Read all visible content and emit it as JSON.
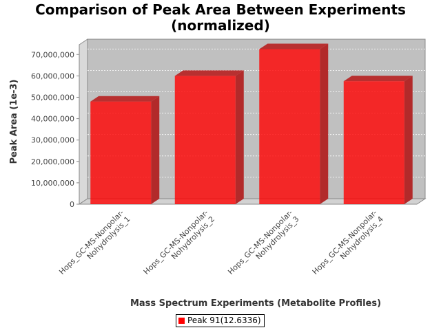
{
  "chart_data": {
    "type": "bar",
    "title_line1": "Comparison of Peak Area Between Experiments",
    "title_line2": "(normalized)",
    "xlabel": "Mass Spectrum Experiments (Metabolite Profiles)",
    "ylabel": "Peak Area (1e-3)",
    "ylim": [
      0,
      75000000
    ],
    "yticks": [
      0,
      10000000,
      20000000,
      30000000,
      40000000,
      50000000,
      60000000,
      70000000
    ],
    "ytick_labels": [
      "0",
      "10,000,000",
      "20,000,000",
      "30,000,000",
      "40,000,000",
      "50,000,000",
      "60,000,000",
      "70,000,000"
    ],
    "categories": [
      [
        "Hops_GC-MS-Nonpolar-",
        "Nohydrolysis_1"
      ],
      [
        "Hops_GC-MS-Nonpolar-",
        "Nohydrolysis_2"
      ],
      [
        "Hops_GC-MS-Nonpolar-",
        "Nohydrolysis_3"
      ],
      [
        "Hops_GC-MS-Nonpolar-",
        "Nohydrolysis_4"
      ]
    ],
    "series": [
      {
        "name": "Peak 91(12.6336)",
        "values": [
          48000000,
          60000000,
          72500000,
          57500000
        ],
        "color": "#ff0000"
      }
    ],
    "grid": true,
    "legend_position": "bottom"
  }
}
